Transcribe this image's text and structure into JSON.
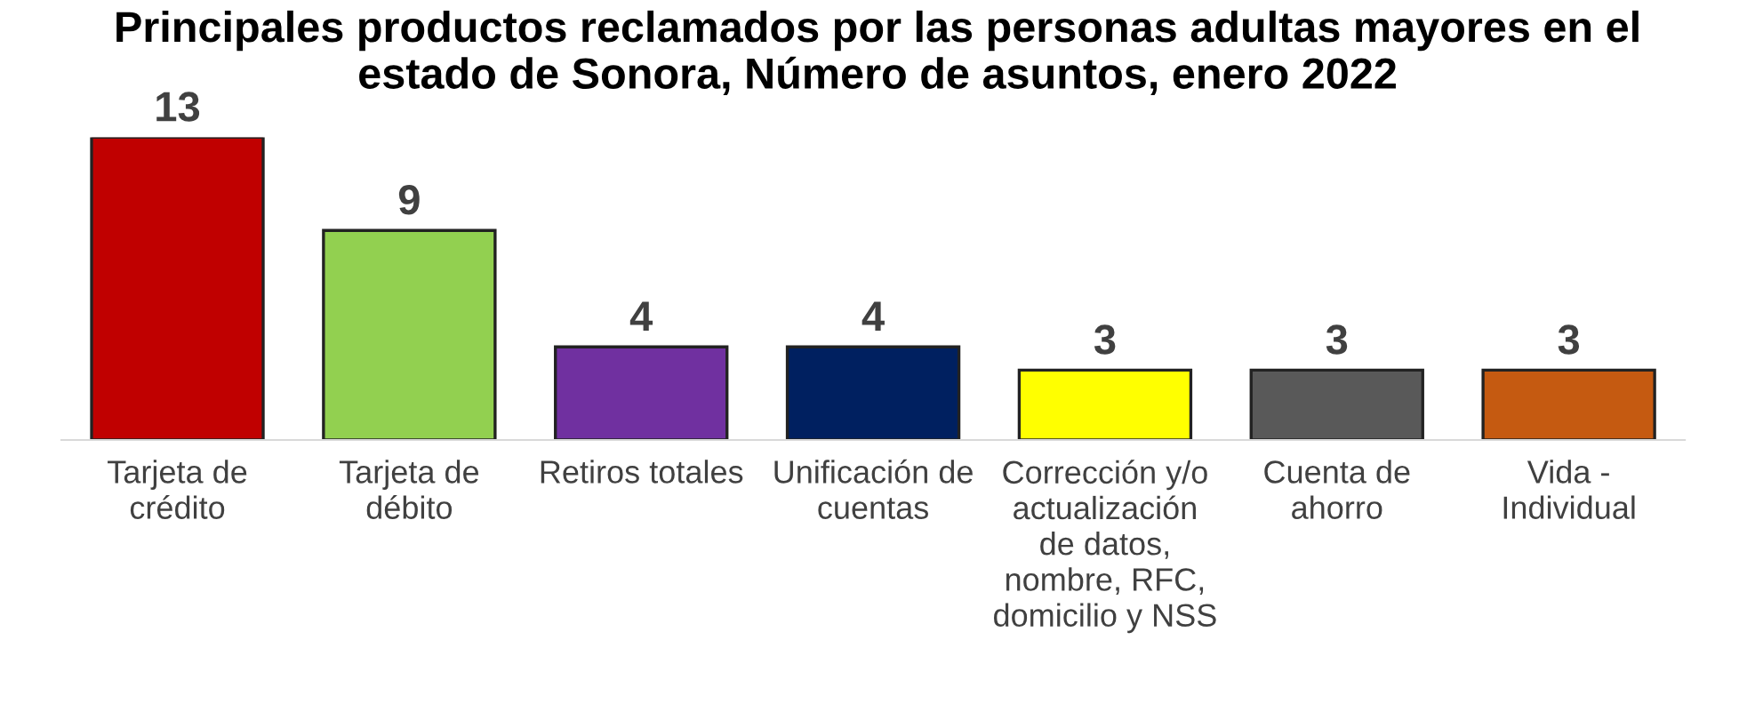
{
  "chart_data": {
    "type": "bar",
    "title": "Principales productos reclamados por las personas adultas mayores en el\nestado de Sonora, Número de asuntos, enero 2022",
    "categories": [
      "Tarjeta de\ncrédito",
      "Tarjeta de\ndébito",
      "Retiros totales",
      "Unificación de\ncuentas",
      "Corrección y/o\nactualización\nde datos,\nnombre, RFC,\ndomicilio y NSS",
      "Cuenta de\nahorro",
      "Vida -\nIndividual"
    ],
    "values": [
      13,
      9,
      4,
      4,
      3,
      3,
      3
    ],
    "colors": [
      "#c00000",
      "#92d050",
      "#7030a0",
      "#002060",
      "#ffff00",
      "#595959",
      "#c55a11"
    ],
    "data_labels": true,
    "grid": false,
    "legend": false
  }
}
